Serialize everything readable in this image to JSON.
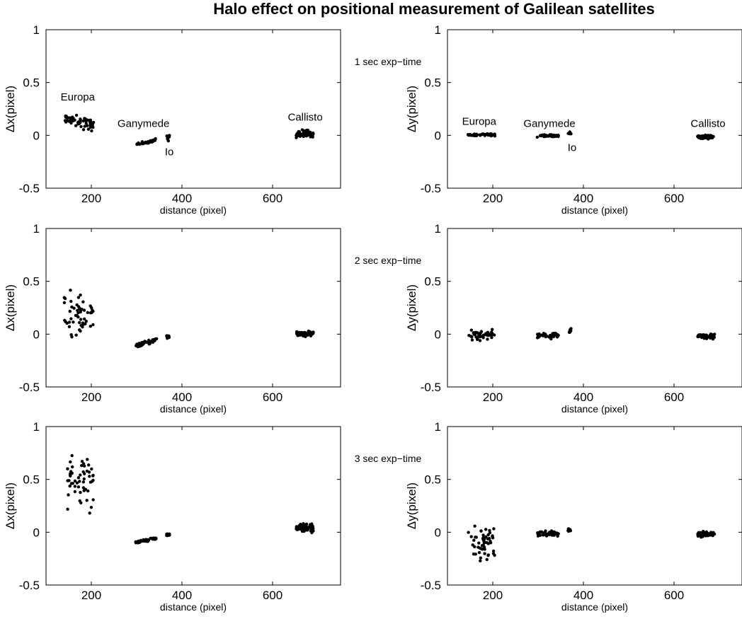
{
  "figure": {
    "title": "Halo effect on positional measurement of Galilean satellites"
  },
  "chart_data": [
    {
      "type": "scatter",
      "row": 0,
      "col": 0,
      "exposure_label": "1 sec exp−time",
      "xlabel": "distance (pixel)",
      "ylabel": "Δx(pixel)",
      "xlim": [
        100,
        750
      ],
      "ylim": [
        -0.5,
        1
      ],
      "xticks": [
        200,
        400,
        600
      ],
      "yticks": [
        -0.5,
        0,
        0.5,
        1
      ],
      "annotations": [
        {
          "text": "Europa",
          "x": 170,
          "y": 0.33
        },
        {
          "text": "Ganymede",
          "x": 315,
          "y": 0.08
        },
        {
          "text": "Io",
          "x": 372,
          "y": -0.19
        },
        {
          "text": "Callisto",
          "x": 672,
          "y": 0.14
        }
      ],
      "clusters": [
        {
          "name": "Europa",
          "x": [
            140,
            205
          ],
          "y": [
            0.02,
            0.24
          ],
          "n": 55,
          "trend": -0.5
        },
        {
          "name": "Ganymede",
          "x": [
            298,
            345
          ],
          "y": [
            -0.1,
            -0.03
          ],
          "n": 45,
          "trend": 0.8
        },
        {
          "name": "Io",
          "x": [
            366,
            373
          ],
          "y": [
            -0.06,
            0.02
          ],
          "n": 10,
          "trend": 0
        },
        {
          "name": "Callisto",
          "x": [
            652,
            690
          ],
          "y": [
            -0.03,
            0.06
          ],
          "n": 60,
          "trend": 0
        }
      ]
    },
    {
      "type": "scatter",
      "row": 0,
      "col": 1,
      "exposure_label": "",
      "xlabel": "distance (pixel)",
      "ylabel": "Δy(pixel)",
      "xlim": [
        100,
        750
      ],
      "ylim": [
        -0.5,
        1
      ],
      "xticks": [
        200,
        400,
        600
      ],
      "yticks": [
        -0.5,
        0,
        0.5,
        1
      ],
      "annotations": [
        {
          "text": "Europa",
          "x": 170,
          "y": 0.1
        },
        {
          "text": "Ganymede",
          "x": 325,
          "y": 0.08
        },
        {
          "text": "Io",
          "x": 375,
          "y": -0.15
        },
        {
          "text": "Callisto",
          "x": 675,
          "y": 0.08
        }
      ],
      "clusters": [
        {
          "name": "Europa",
          "x": [
            145,
            205
          ],
          "y": [
            -0.01,
            0.02
          ],
          "n": 45,
          "trend": 0
        },
        {
          "name": "Ganymede",
          "x": [
            298,
            345
          ],
          "y": [
            -0.02,
            0.01
          ],
          "n": 45,
          "trend": 0
        },
        {
          "name": "Io",
          "x": [
            366,
            373
          ],
          "y": [
            0.0,
            0.04
          ],
          "n": 10,
          "trend": 0
        },
        {
          "name": "Callisto",
          "x": [
            652,
            690
          ],
          "y": [
            -0.04,
            0.01
          ],
          "n": 55,
          "trend": 0
        }
      ]
    },
    {
      "type": "scatter",
      "row": 1,
      "col": 0,
      "exposure_label": "2 sec exp−time",
      "xlabel": "distance (pixel)",
      "ylabel": "Δx(pixel)",
      "xlim": [
        100,
        750
      ],
      "ylim": [
        -0.5,
        1
      ],
      "xticks": [
        200,
        400,
        600
      ],
      "yticks": [
        -0.5,
        0,
        0.5,
        1
      ],
      "annotations": [],
      "clusters": [
        {
          "name": "Europa",
          "x": [
            140,
            205
          ],
          "y": [
            -0.09,
            0.47
          ],
          "n": 55,
          "trend": 0
        },
        {
          "name": "Ganymede",
          "x": [
            298,
            345
          ],
          "y": [
            -0.13,
            -0.03
          ],
          "n": 45,
          "trend": 0.8
        },
        {
          "name": "Io",
          "x": [
            366,
            373
          ],
          "y": [
            -0.05,
            0.0
          ],
          "n": 10,
          "trend": 0
        },
        {
          "name": "Callisto",
          "x": [
            652,
            690
          ],
          "y": [
            -0.03,
            0.04
          ],
          "n": 60,
          "trend": 0
        }
      ]
    },
    {
      "type": "scatter",
      "row": 1,
      "col": 1,
      "exposure_label": "",
      "xlabel": "distance (pixel)",
      "ylabel": "Δy(pixel)",
      "xlim": [
        100,
        750
      ],
      "ylim": [
        -0.5,
        1
      ],
      "xticks": [
        200,
        400,
        600
      ],
      "yticks": [
        -0.5,
        0,
        0.5,
        1
      ],
      "annotations": [],
      "clusters": [
        {
          "name": "Europa",
          "x": [
            145,
            205
          ],
          "y": [
            -0.09,
            0.07
          ],
          "n": 45,
          "trend": 0
        },
        {
          "name": "Ganymede",
          "x": [
            298,
            345
          ],
          "y": [
            -0.05,
            0.02
          ],
          "n": 45,
          "trend": 0
        },
        {
          "name": "Io",
          "x": [
            366,
            373
          ],
          "y": [
            0.0,
            0.06
          ],
          "n": 10,
          "trend": 0
        },
        {
          "name": "Callisto",
          "x": [
            652,
            690
          ],
          "y": [
            -0.05,
            0.01
          ],
          "n": 55,
          "trend": 0
        }
      ]
    },
    {
      "type": "scatter",
      "row": 2,
      "col": 0,
      "exposure_label": "3 sec exp−time",
      "xlabel": "distance (pixel)",
      "ylabel": "Δx(pixel)",
      "xlim": [
        100,
        750
      ],
      "ylim": [
        -0.5,
        1
      ],
      "xticks": [
        200,
        400,
        600
      ],
      "yticks": [
        -0.5,
        0,
        0.5,
        1
      ],
      "annotations": [],
      "clusters": [
        {
          "name": "Europa",
          "x": [
            145,
            205
          ],
          "y": [
            0.12,
            0.9
          ],
          "n": 55,
          "trend": 0
        },
        {
          "name": "Ganymede",
          "x": [
            298,
            345
          ],
          "y": [
            -0.11,
            -0.04
          ],
          "n": 45,
          "trend": 0.8
        },
        {
          "name": "Io",
          "x": [
            366,
            373
          ],
          "y": [
            -0.05,
            0.0
          ],
          "n": 10,
          "trend": 0
        },
        {
          "name": "Callisto",
          "x": [
            652,
            690
          ],
          "y": [
            -0.02,
            0.1
          ],
          "n": 60,
          "trend": 0
        }
      ]
    },
    {
      "type": "scatter",
      "row": 2,
      "col": 1,
      "exposure_label": "",
      "xlabel": "distance (pixel)",
      "ylabel": "Δy(pixel)",
      "xlim": [
        100,
        750
      ],
      "ylim": [
        -0.5,
        1
      ],
      "xticks": [
        200,
        400,
        600
      ],
      "yticks": [
        -0.5,
        0,
        0.5,
        1
      ],
      "annotations": [],
      "clusters": [
        {
          "name": "Europa",
          "x": [
            145,
            205
          ],
          "y": [
            -0.38,
            0.15
          ],
          "n": 55,
          "trend": 0
        },
        {
          "name": "Ganymede",
          "x": [
            298,
            345
          ],
          "y": [
            -0.05,
            0.02
          ],
          "n": 45,
          "trend": 0
        },
        {
          "name": "Io",
          "x": [
            366,
            373
          ],
          "y": [
            0.0,
            0.04
          ],
          "n": 10,
          "trend": 0
        },
        {
          "name": "Callisto",
          "x": [
            652,
            690
          ],
          "y": [
            -0.06,
            0.02
          ],
          "n": 55,
          "trend": 0
        }
      ]
    }
  ]
}
